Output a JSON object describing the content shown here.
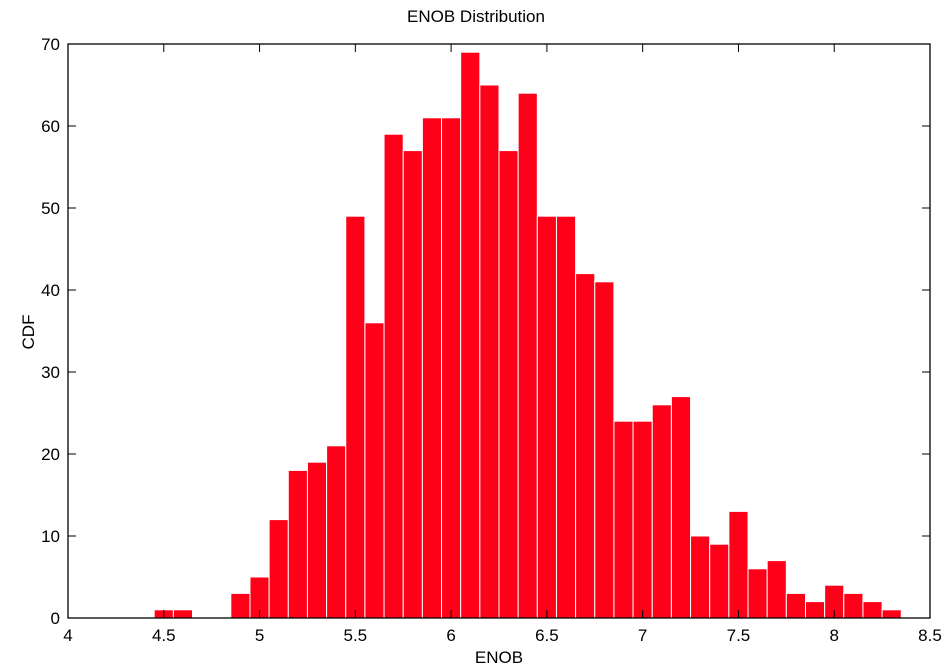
{
  "chart_data": {
    "type": "bar",
    "title": "ENOB Distribution",
    "xlabel": "ENOB",
    "ylabel": "CDF",
    "xlim": [
      4,
      8.5
    ],
    "ylim": [
      0,
      70
    ],
    "x_ticks": [
      "4",
      "4.5",
      "5",
      "5.5",
      "6",
      "6.5",
      "7",
      "7.5",
      "8",
      "8.5"
    ],
    "y_ticks": [
      "0",
      "10",
      "20",
      "30",
      "40",
      "50",
      "60",
      "70"
    ],
    "bar_color": "#ff0019",
    "bins": [
      {
        "center": 4.5,
        "value": 1
      },
      {
        "center": 4.6,
        "value": 1
      },
      {
        "center": 4.9,
        "value": 3
      },
      {
        "center": 5.0,
        "value": 5
      },
      {
        "center": 5.1,
        "value": 12
      },
      {
        "center": 5.2,
        "value": 18
      },
      {
        "center": 5.3,
        "value": 19
      },
      {
        "center": 5.4,
        "value": 21
      },
      {
        "center": 5.5,
        "value": 49
      },
      {
        "center": 5.6,
        "value": 36
      },
      {
        "center": 5.7,
        "value": 59
      },
      {
        "center": 5.8,
        "value": 57
      },
      {
        "center": 5.9,
        "value": 61
      },
      {
        "center": 6.0,
        "value": 61
      },
      {
        "center": 6.1,
        "value": 69
      },
      {
        "center": 6.2,
        "value": 65
      },
      {
        "center": 6.3,
        "value": 57
      },
      {
        "center": 6.4,
        "value": 64
      },
      {
        "center": 6.5,
        "value": 49
      },
      {
        "center": 6.6,
        "value": 49
      },
      {
        "center": 6.7,
        "value": 42
      },
      {
        "center": 6.8,
        "value": 41
      },
      {
        "center": 6.9,
        "value": 24
      },
      {
        "center": 7.0,
        "value": 24
      },
      {
        "center": 7.1,
        "value": 26
      },
      {
        "center": 7.2,
        "value": 27
      },
      {
        "center": 7.3,
        "value": 10
      },
      {
        "center": 7.4,
        "value": 9
      },
      {
        "center": 7.5,
        "value": 13
      },
      {
        "center": 7.6,
        "value": 6
      },
      {
        "center": 7.7,
        "value": 7
      },
      {
        "center": 7.8,
        "value": 3
      },
      {
        "center": 7.9,
        "value": 2
      },
      {
        "center": 8.0,
        "value": 4
      },
      {
        "center": 8.1,
        "value": 3
      },
      {
        "center": 8.2,
        "value": 2
      },
      {
        "center": 8.3,
        "value": 1
      }
    ]
  }
}
